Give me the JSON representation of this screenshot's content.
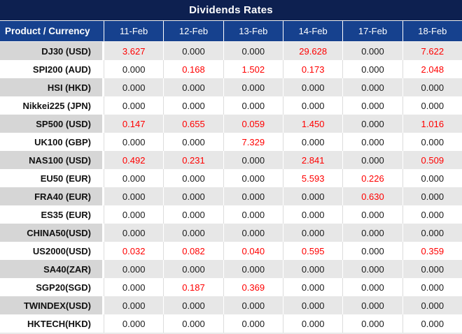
{
  "chart_data": {
    "type": "table",
    "title": "Dividends Rates",
    "product_header": "Product / Currency",
    "columns": [
      "11-Feb",
      "12-Feb",
      "13-Feb",
      "14-Feb",
      "17-Feb",
      "18-Feb"
    ],
    "rows": [
      {
        "product": "DJ30 (USD)",
        "values": [
          "3.627",
          "0.000",
          "0.000",
          "29.628",
          "0.000",
          "7.622"
        ]
      },
      {
        "product": "SPI200 (AUD)",
        "values": [
          "0.000",
          "0.168",
          "1.502",
          "0.173",
          "0.000",
          "2.048"
        ]
      },
      {
        "product": "HSI (HKD)",
        "values": [
          "0.000",
          "0.000",
          "0.000",
          "0.000",
          "0.000",
          "0.000"
        ]
      },
      {
        "product": "Nikkei225 (JPN)",
        "values": [
          "0.000",
          "0.000",
          "0.000",
          "0.000",
          "0.000",
          "0.000"
        ]
      },
      {
        "product": "SP500 (USD)",
        "values": [
          "0.147",
          "0.655",
          "0.059",
          "1.450",
          "0.000",
          "1.016"
        ]
      },
      {
        "product": "UK100 (GBP)",
        "values": [
          "0.000",
          "0.000",
          "7.329",
          "0.000",
          "0.000",
          "0.000"
        ]
      },
      {
        "product": "NAS100 (USD)",
        "values": [
          "0.492",
          "0.231",
          "0.000",
          "2.841",
          "0.000",
          "0.509"
        ]
      },
      {
        "product": "EU50 (EUR)",
        "values": [
          "0.000",
          "0.000",
          "0.000",
          "5.593",
          "0.226",
          "0.000"
        ]
      },
      {
        "product": "FRA40 (EUR)",
        "values": [
          "0.000",
          "0.000",
          "0.000",
          "0.000",
          "0.630",
          "0.000"
        ]
      },
      {
        "product": "ES35 (EUR)",
        "values": [
          "0.000",
          "0.000",
          "0.000",
          "0.000",
          "0.000",
          "0.000"
        ]
      },
      {
        "product": "CHINA50(USD)",
        "values": [
          "0.000",
          "0.000",
          "0.000",
          "0.000",
          "0.000",
          "0.000"
        ]
      },
      {
        "product": "US2000(USD)",
        "values": [
          "0.032",
          "0.082",
          "0.040",
          "0.595",
          "0.000",
          "0.359"
        ]
      },
      {
        "product": "SA40(ZAR)",
        "values": [
          "0.000",
          "0.000",
          "0.000",
          "0.000",
          "0.000",
          "0.000"
        ]
      },
      {
        "product": "SGP20(SGD)",
        "values": [
          "0.000",
          "0.187",
          "0.369",
          "0.000",
          "0.000",
          "0.000"
        ]
      },
      {
        "product": "TWINDEX(USD)",
        "values": [
          "0.000",
          "0.000",
          "0.000",
          "0.000",
          "0.000",
          "0.000"
        ]
      },
      {
        "product": "HKTECH(HKD)",
        "values": [
          "0.000",
          "0.000",
          "0.000",
          "0.000",
          "0.000",
          "0.000"
        ]
      }
    ]
  },
  "colors": {
    "title_bar_bg": "#0D2050",
    "header_bg": "#16418E",
    "header_text": "#FFFFFF",
    "stripe_product_bg": "#D6D6D6",
    "stripe_value_bg": "#E7E7E7",
    "white_row_bg": "#FFFFFF",
    "zero_value_text": "#1A1A1A",
    "nonzero_value_text": "#FF0000"
  }
}
